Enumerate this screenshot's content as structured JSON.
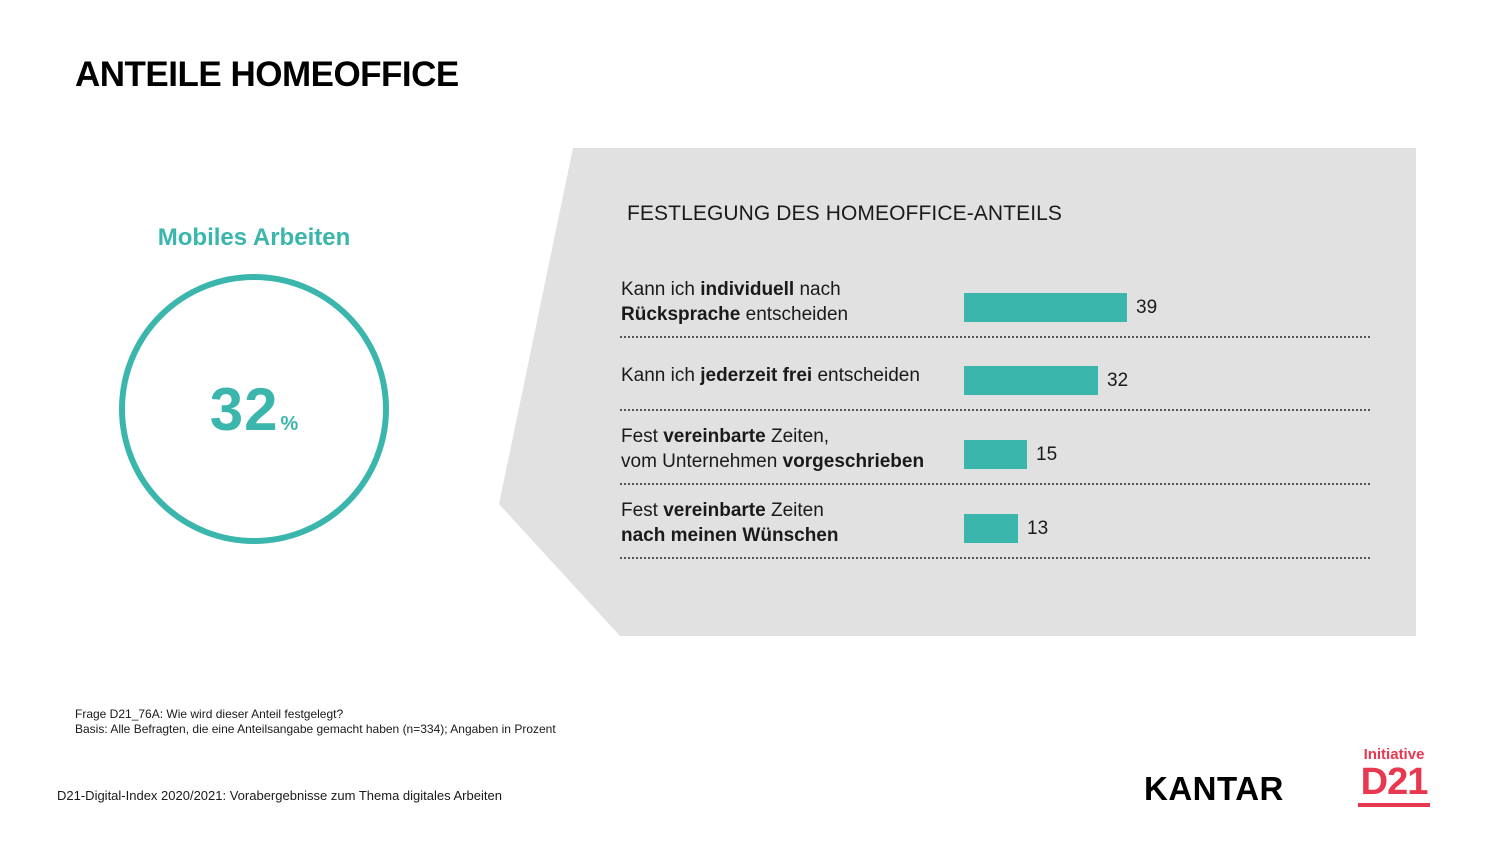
{
  "page": {
    "title": "ANTEILE HOMEOFFICE"
  },
  "kpi": {
    "label": "Mobiles Arbeiten",
    "value": "32",
    "unit": "%"
  },
  "chart_data": {
    "type": "bar",
    "orientation": "horizontal",
    "title": "FESTLEGUNG DES HOMEOFFICE-ANTEILS",
    "categories": [
      "Kann ich individuell nach Rücksprache entscheiden",
      "Kann ich jederzeit frei entscheiden",
      "Fest vereinbarte Zeiten, vom Unternehmen vorgeschrieben",
      "Fest vereinbarte Zeiten nach meinen Wünschen"
    ],
    "label_parts": [
      [
        [
          {
            "t": "Kann ich ",
            "b": false
          },
          {
            "t": "individuell",
            "b": true
          },
          {
            "t": " nach",
            "b": false
          }
        ],
        [
          {
            "t": "Rücksprache",
            "b": true
          },
          {
            "t": " entscheiden",
            "b": false
          }
        ]
      ],
      [
        [
          {
            "t": "Kann ich ",
            "b": false
          },
          {
            "t": "jederzeit frei",
            "b": true
          },
          {
            "t": " entscheiden",
            "b": false
          }
        ]
      ],
      [
        [
          {
            "t": "Fest ",
            "b": false
          },
          {
            "t": "vereinbarte",
            "b": true
          },
          {
            "t": " Zeiten,",
            "b": false
          }
        ],
        [
          {
            "t": "vom Unternehmen ",
            "b": false
          },
          {
            "t": "vorgeschrieben",
            "b": true
          }
        ]
      ],
      [
        [
          {
            "t": "Fest ",
            "b": false
          },
          {
            "t": "vereinbarte",
            "b": true
          },
          {
            "t": " Zeiten",
            "b": false
          }
        ],
        [
          {
            "t": "nach meinen Wünschen",
            "b": true
          }
        ]
      ]
    ],
    "values": [
      39,
      32,
      15,
      13
    ],
    "xlim": [
      0,
      100
    ],
    "bar_color": "#3bb6ac"
  },
  "footnote": {
    "line1": "Frage D21_76A:  Wie wird dieser  Anteil festgelegt?",
    "line2": "Basis: Alle Befragten,  die eine Anteilsangabe gemacht haben (n=334); Angaben in Prozent"
  },
  "footer": {
    "source": "D21-Digital-Index  2020/2021: Vorabergebnisse zum Thema  digitales Arbeiten"
  },
  "logos": {
    "kantar": "KANTAR",
    "d21_top": "Initiative",
    "d21_main": "D21"
  },
  "colors": {
    "accent": "#3bb6ac",
    "panel": "#e1e1e1",
    "d21_red": "#e8384f"
  }
}
